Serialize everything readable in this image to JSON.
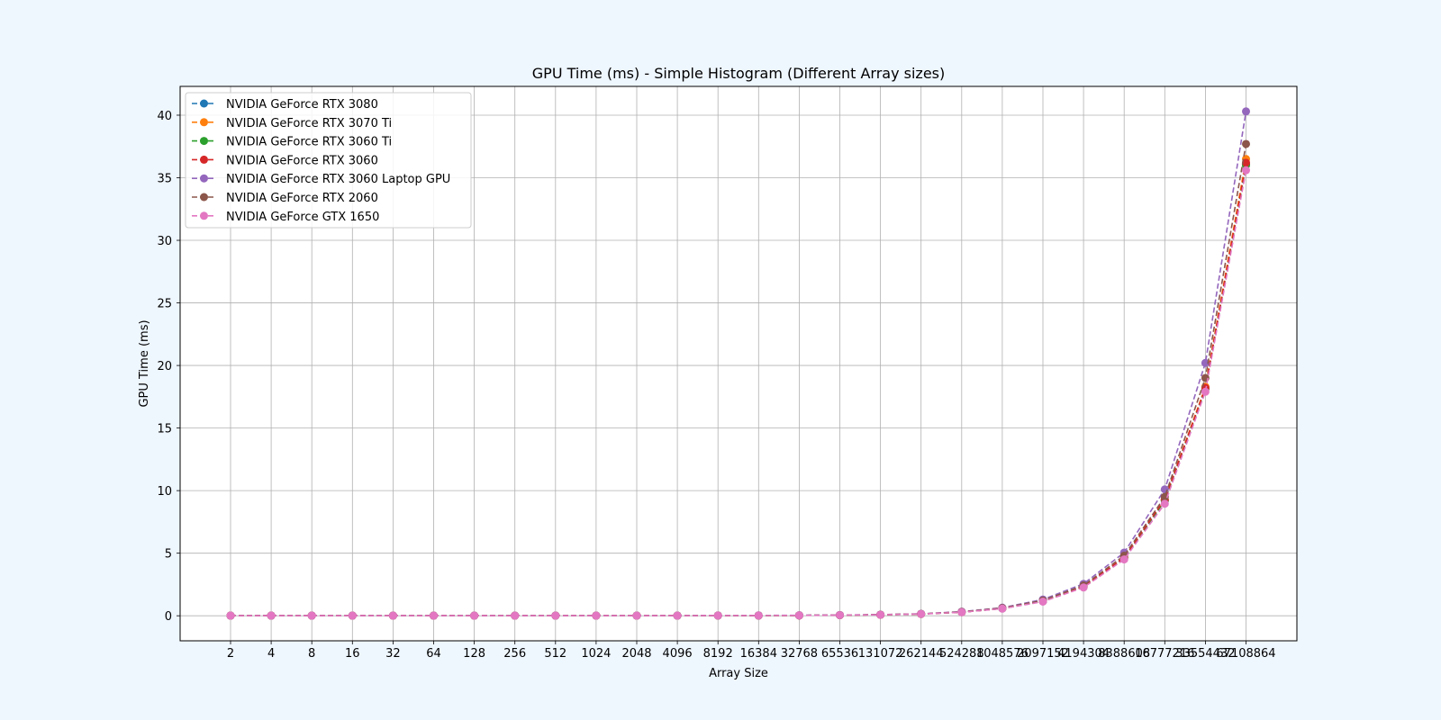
{
  "chart_data": {
    "type": "line",
    "title": "GPU Time (ms) - Simple Histogram (Different Array sizes)",
    "xlabel": "Array Size",
    "ylabel": "GPU Time (ms)",
    "categories": [
      "2",
      "4",
      "8",
      "16",
      "32",
      "64",
      "128",
      "256",
      "512",
      "1024",
      "2048",
      "4096",
      "8192",
      "16384",
      "32768",
      "65536",
      "131072",
      "262144",
      "524288",
      "1048576",
      "2097152",
      "4194304",
      "8388608",
      "16777216",
      "33554432",
      "67108864"
    ],
    "ylim": [
      -2,
      42.3
    ],
    "yticks": [
      0,
      5,
      10,
      15,
      20,
      25,
      30,
      35,
      40
    ],
    "grid": true,
    "legend_position": "upper-left",
    "line_style": "dashed",
    "marker": "circle",
    "series": [
      {
        "name": "NVIDIA GeForce RTX 3080",
        "color": "#1f77b4",
        "values": [
          0.01,
          0.01,
          0.01,
          0.01,
          0.01,
          0.01,
          0.01,
          0.01,
          0.01,
          0.01,
          0.01,
          0.01,
          0.02,
          0.02,
          0.03,
          0.05,
          0.08,
          0.14,
          0.29,
          0.58,
          1.15,
          2.3,
          4.6,
          9.2,
          18.2,
          36.1
        ]
      },
      {
        "name": "NVIDIA GeForce RTX 3070 Ti",
        "color": "#ff7f0e",
        "values": [
          0.01,
          0.01,
          0.01,
          0.01,
          0.01,
          0.01,
          0.01,
          0.01,
          0.01,
          0.01,
          0.01,
          0.01,
          0.02,
          0.02,
          0.03,
          0.05,
          0.08,
          0.14,
          0.29,
          0.59,
          1.17,
          2.33,
          4.65,
          9.3,
          18.3,
          36.5
        ]
      },
      {
        "name": "NVIDIA GeForce RTX 3060 Ti",
        "color": "#2ca02c",
        "values": [
          0.01,
          0.01,
          0.01,
          0.01,
          0.01,
          0.01,
          0.01,
          0.01,
          0.01,
          0.01,
          0.01,
          0.01,
          0.02,
          0.02,
          0.03,
          0.05,
          0.08,
          0.14,
          0.29,
          0.58,
          1.16,
          2.31,
          4.6,
          9.2,
          18.1,
          36.0
        ]
      },
      {
        "name": "NVIDIA GeForce RTX 3060",
        "color": "#d62728",
        "values": [
          0.01,
          0.01,
          0.01,
          0.01,
          0.01,
          0.01,
          0.01,
          0.01,
          0.01,
          0.01,
          0.01,
          0.01,
          0.02,
          0.02,
          0.03,
          0.05,
          0.08,
          0.14,
          0.29,
          0.59,
          1.17,
          2.33,
          4.65,
          9.3,
          18.2,
          36.2
        ]
      },
      {
        "name": "NVIDIA GeForce RTX 3060 Laptop GPU",
        "color": "#9467bd",
        "values": [
          0.01,
          0.01,
          0.01,
          0.01,
          0.01,
          0.01,
          0.01,
          0.01,
          0.01,
          0.01,
          0.01,
          0.01,
          0.02,
          0.03,
          0.04,
          0.06,
          0.09,
          0.16,
          0.33,
          0.65,
          1.3,
          2.55,
          5.05,
          10.1,
          20.2,
          40.3
        ]
      },
      {
        "name": "NVIDIA GeForce RTX 2060",
        "color": "#8c564b",
        "values": [
          0.01,
          0.01,
          0.01,
          0.01,
          0.01,
          0.01,
          0.01,
          0.01,
          0.01,
          0.01,
          0.01,
          0.01,
          0.02,
          0.02,
          0.03,
          0.05,
          0.09,
          0.15,
          0.31,
          0.62,
          1.22,
          2.42,
          4.8,
          9.5,
          19.0,
          37.7
        ]
      },
      {
        "name": "NVIDIA GeForce GTX 1650",
        "color": "#e377c2",
        "values": [
          0.01,
          0.01,
          0.01,
          0.01,
          0.01,
          0.01,
          0.01,
          0.01,
          0.01,
          0.01,
          0.01,
          0.01,
          0.02,
          0.02,
          0.03,
          0.05,
          0.08,
          0.14,
          0.28,
          0.57,
          1.13,
          2.26,
          4.5,
          8.95,
          17.9,
          35.6
        ]
      }
    ]
  }
}
